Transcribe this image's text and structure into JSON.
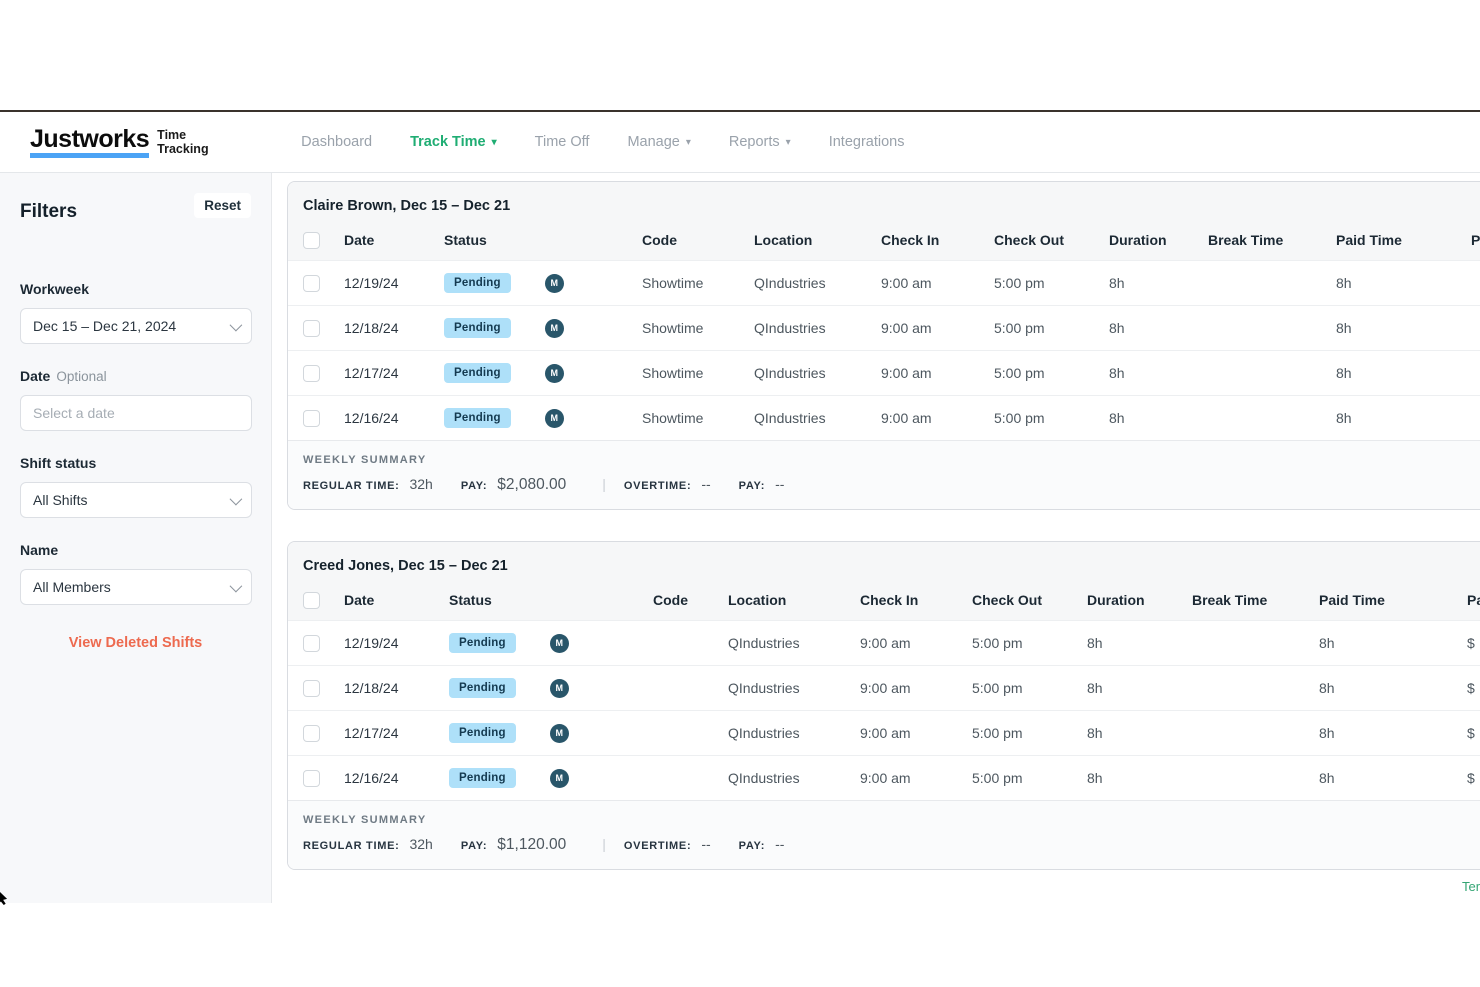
{
  "brand": {
    "logo": "Justworks",
    "product": "Time Tracking"
  },
  "nav": {
    "items": [
      {
        "label": "Dashboard",
        "active": false,
        "caret": false
      },
      {
        "label": "Track Time",
        "active": true,
        "caret": true
      },
      {
        "label": "Time Off",
        "active": false,
        "caret": false
      },
      {
        "label": "Manage",
        "active": false,
        "caret": true
      },
      {
        "label": "Reports",
        "active": false,
        "caret": true
      },
      {
        "label": "Integrations",
        "active": false,
        "caret": false
      }
    ]
  },
  "filters": {
    "title": "Filters",
    "reset_label": "Reset",
    "workweek": {
      "label": "Workweek",
      "value": "Dec 15 – Dec 21, 2024"
    },
    "date": {
      "label": "Date",
      "optional": "Optional",
      "placeholder": "Select a date"
    },
    "shift_status": {
      "label": "Shift status",
      "value": "All Shifts"
    },
    "name": {
      "label": "Name",
      "value": "All Members"
    },
    "deleted_link": "View Deleted Shifts"
  },
  "tables": [
    {
      "title": "Claire Brown, Dec 15 – Dec 21",
      "columns": [
        "Date",
        "Status",
        "Code",
        "Location",
        "Check In",
        "Check Out",
        "Duration",
        "Break Time",
        "Paid Time",
        "Pay"
      ],
      "rows": [
        {
          "date": "12/19/24",
          "status": "Pending",
          "avatar": "M",
          "code": "Showtime",
          "location": "QIndustries",
          "check_in": "9:00 am",
          "check_out": "5:00 pm",
          "duration": "8h",
          "break_time": "",
          "paid_time": "8h",
          "pay": ""
        },
        {
          "date": "12/18/24",
          "status": "Pending",
          "avatar": "M",
          "code": "Showtime",
          "location": "QIndustries",
          "check_in": "9:00 am",
          "check_out": "5:00 pm",
          "duration": "8h",
          "break_time": "",
          "paid_time": "8h",
          "pay": ""
        },
        {
          "date": "12/17/24",
          "status": "Pending",
          "avatar": "M",
          "code": "Showtime",
          "location": "QIndustries",
          "check_in": "9:00 am",
          "check_out": "5:00 pm",
          "duration": "8h",
          "break_time": "",
          "paid_time": "8h",
          "pay": ""
        },
        {
          "date": "12/16/24",
          "status": "Pending",
          "avatar": "M",
          "code": "Showtime",
          "location": "QIndustries",
          "check_in": "9:00 am",
          "check_out": "5:00 pm",
          "duration": "8h",
          "break_time": "",
          "paid_time": "8h",
          "pay": ""
        }
      ],
      "summary": {
        "heading": "WEEKLY SUMMARY",
        "regular_label": "REGULAR TIME:",
        "regular_value": "32h",
        "pay_label": "PAY:",
        "pay_value": "$2,080.00",
        "separator": "|",
        "overtime_label": "OVERTIME:",
        "overtime_value": "--",
        "ot_pay_label": "PAY:",
        "ot_pay_value": "--"
      }
    },
    {
      "title": "Creed Jones, Dec 15 – Dec 21",
      "columns": [
        "Date",
        "Status",
        "Code",
        "Location",
        "Check In",
        "Check Out",
        "Duration",
        "Break Time",
        "Paid Time",
        "Pay"
      ],
      "rows": [
        {
          "date": "12/19/24",
          "status": "Pending",
          "avatar": "M",
          "code": "",
          "location": "QIndustries",
          "check_in": "9:00 am",
          "check_out": "5:00 pm",
          "duration": "8h",
          "break_time": "",
          "paid_time": "8h",
          "pay": "$"
        },
        {
          "date": "12/18/24",
          "status": "Pending",
          "avatar": "M",
          "code": "",
          "location": "QIndustries",
          "check_in": "9:00 am",
          "check_out": "5:00 pm",
          "duration": "8h",
          "break_time": "",
          "paid_time": "8h",
          "pay": "$"
        },
        {
          "date": "12/17/24",
          "status": "Pending",
          "avatar": "M",
          "code": "",
          "location": "QIndustries",
          "check_in": "9:00 am",
          "check_out": "5:00 pm",
          "duration": "8h",
          "break_time": "",
          "paid_time": "8h",
          "pay": "$"
        },
        {
          "date": "12/16/24",
          "status": "Pending",
          "avatar": "M",
          "code": "",
          "location": "QIndustries",
          "check_in": "9:00 am",
          "check_out": "5:00 pm",
          "duration": "8h",
          "break_time": "",
          "paid_time": "8h",
          "pay": "$"
        }
      ],
      "summary": {
        "heading": "WEEKLY SUMMARY",
        "regular_label": "REGULAR TIME:",
        "regular_value": "32h",
        "pay_label": "PAY:",
        "pay_value": "$1,120.00",
        "separator": "|",
        "overtime_label": "OVERTIME:",
        "overtime_value": "--",
        "ot_pay_label": "PAY:",
        "ot_pay_value": "--"
      }
    }
  ],
  "footer": {
    "terms_link": "Terms"
  },
  "colors": {
    "accent_green": "#1fad73",
    "logo_underline_blue": "#4ba3f5",
    "pending_badge_bg": "#aee0f9",
    "pending_badge_text": "#143a50",
    "avatar_bg": "#29566a",
    "deleted_link_orange": "#ed6a4f",
    "footer_link_green": "#33a573",
    "sidebar_bg": "#f7f8fa",
    "card_head_bg": "#f6f7f8"
  }
}
